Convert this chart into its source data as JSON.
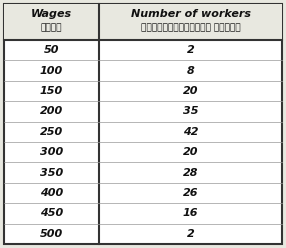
{
  "col1_header_en": "Wages",
  "col1_header_ml": "കൂലി",
  "col2_header_en": "Number of workers",
  "col2_header_ml": "തൊഴിലാളികളുടെ എണ്ണം",
  "wages": [
    50,
    100,
    150,
    200,
    250,
    300,
    350,
    400,
    450,
    500
  ],
  "workers": [
    2,
    8,
    20,
    35,
    42,
    20,
    28,
    26,
    16,
    2
  ],
  "bg_color": "#e8e8e0",
  "cell_color": "#ffffff",
  "border_color": "#333333",
  "text_color": "#111111",
  "font_size_header_en": 8,
  "font_size_header_ml": 6.5,
  "font_size_data": 8
}
